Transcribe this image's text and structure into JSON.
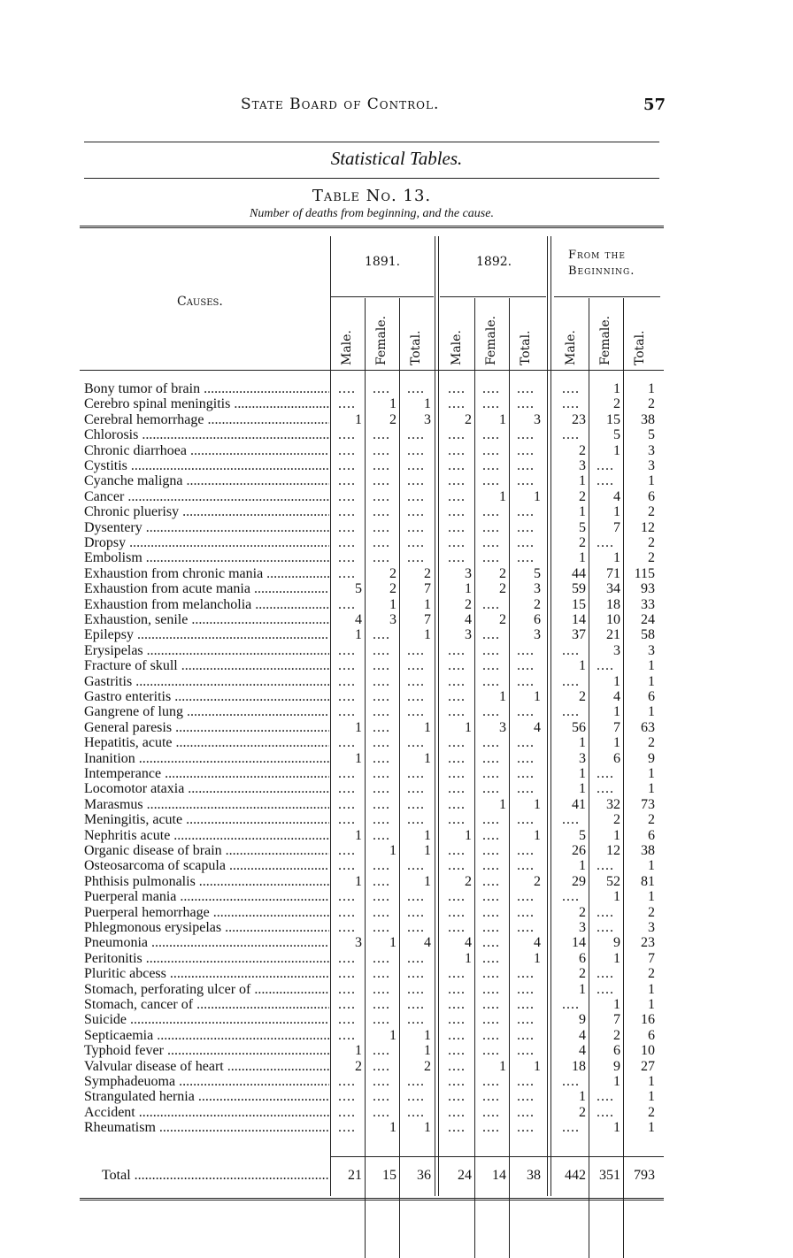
{
  "header": {
    "running_title": "State Board of Control.",
    "page_number": "57"
  },
  "section_title": "Statistical Tables.",
  "table": {
    "title": "Table No. 13.",
    "subtitle": "Number of deaths from beginning, and the cause.",
    "causes_header": "Causes.",
    "groups": [
      "1891.",
      "1892.",
      "From the Beginning."
    ],
    "subheaders": [
      "Male.",
      "Female.",
      "Total.",
      "Male.",
      "Female.",
      "Total.",
      "Male.",
      "Female.",
      "Total."
    ],
    "blank_marker": "....",
    "rows": [
      [
        "Bony tumor of brain",
        "",
        "",
        "",
        "",
        "",
        "",
        "",
        "1",
        "1"
      ],
      [
        "Cerebro spinal meningitis",
        "",
        "1",
        "1",
        "",
        "",
        "",
        "",
        "2",
        "2"
      ],
      [
        "Cerebral hemorrhage",
        "1",
        "2",
        "3",
        "2",
        "1",
        "3",
        "23",
        "15",
        "38"
      ],
      [
        "Chlorosis",
        "",
        "",
        "",
        "",
        "",
        "",
        "",
        "5",
        "5"
      ],
      [
        "Chronic diarrhoea",
        "",
        "",
        "",
        "",
        "",
        "",
        "2",
        "1",
        "3"
      ],
      [
        "Cystitis",
        "",
        "",
        "",
        "",
        "",
        "",
        "3",
        "",
        "3"
      ],
      [
        "Cyanche maligna",
        "",
        "",
        "",
        "",
        "",
        "",
        "1",
        "",
        "1"
      ],
      [
        "Cancer",
        "",
        "",
        "",
        "",
        "1",
        "1",
        "2",
        "4",
        "6"
      ],
      [
        "Chronic pluerisy",
        "",
        "",
        "",
        "",
        "",
        "",
        "1",
        "1",
        "2"
      ],
      [
        "Dysentery",
        "",
        "",
        "",
        "",
        "",
        "",
        "5",
        "7",
        "12"
      ],
      [
        "Dropsy",
        "",
        "",
        "",
        "",
        "",
        "",
        "2",
        "",
        "2"
      ],
      [
        "Embolism",
        "",
        "",
        "",
        "",
        "",
        "",
        "1",
        "1",
        "2"
      ],
      [
        "Exhaustion from chronic mania",
        "",
        "2",
        "2",
        "3",
        "2",
        "5",
        "44",
        "71",
        "115"
      ],
      [
        "Exhaustion from acute mania",
        "5",
        "2",
        "7",
        "1",
        "2",
        "3",
        "59",
        "34",
        "93"
      ],
      [
        "Exhaustion from melancholia",
        "",
        "1",
        "1",
        "2",
        "",
        "2",
        "15",
        "18",
        "33"
      ],
      [
        "Exhaustion, senile",
        "4",
        "3",
        "7",
        "4",
        "2",
        "6",
        "14",
        "10",
        "24"
      ],
      [
        "Epilepsy",
        "1",
        "",
        "1",
        "3",
        "",
        "3",
        "37",
        "21",
        "58"
      ],
      [
        "Erysipelas",
        "",
        "",
        "",
        "",
        "",
        "",
        "",
        "3",
        "3"
      ],
      [
        "Fracture of skull",
        "",
        "",
        "",
        "",
        "",
        "",
        "1",
        "",
        "1"
      ],
      [
        "Gastritis",
        "",
        "",
        "",
        "",
        "",
        "",
        "",
        "1",
        "1"
      ],
      [
        "Gastro enteritis",
        "",
        "",
        "",
        "",
        "1",
        "1",
        "2",
        "4",
        "6"
      ],
      [
        "Gangrene of lung",
        "",
        "",
        "",
        "",
        "",
        "",
        "",
        "1",
        "1"
      ],
      [
        "General paresis",
        "1",
        "",
        "1",
        "1",
        "3",
        "4",
        "56",
        "7",
        "63"
      ],
      [
        "Hepatitis, acute",
        "",
        "",
        "",
        "",
        "",
        "",
        "1",
        "1",
        "2"
      ],
      [
        "Inanition",
        "1",
        "",
        "1",
        "",
        "",
        "",
        "3",
        "6",
        "9"
      ],
      [
        "Intemperance",
        "",
        "",
        "",
        "",
        "",
        "",
        "1",
        "",
        "1"
      ],
      [
        "Locomotor ataxia",
        "",
        "",
        "",
        "",
        "",
        "",
        "1",
        "",
        "1"
      ],
      [
        "Marasmus",
        "",
        "",
        "",
        "",
        "1",
        "1",
        "41",
        "32",
        "73"
      ],
      [
        "Meningitis, acute",
        "",
        "",
        "",
        "",
        "",
        "",
        "",
        "2",
        "2"
      ],
      [
        "Nephritis acute",
        "1",
        "",
        "1",
        "1",
        "",
        "1",
        "5",
        "1",
        "6"
      ],
      [
        "Organic disease of brain",
        "",
        "1",
        "1",
        "",
        "",
        "",
        "26",
        "12",
        "38"
      ],
      [
        "Osteosarcoma of scapula",
        "",
        "",
        "",
        "",
        "",
        "",
        "1",
        "",
        "1"
      ],
      [
        "Phthisis pulmonalis",
        "1",
        "",
        "1",
        "2",
        "",
        "2",
        "29",
        "52",
        "81"
      ],
      [
        "Puerperal mania",
        "",
        "",
        "",
        "",
        "",
        "",
        "",
        "1",
        "1"
      ],
      [
        "Puerperal hemorrhage",
        "",
        "",
        "",
        "",
        "",
        "",
        "2",
        "",
        "2"
      ],
      [
        "Phlegmonous erysipelas",
        "",
        "",
        "",
        "",
        "",
        "",
        "3",
        "",
        "3"
      ],
      [
        "Pneumonia",
        "3",
        "1",
        "4",
        "4",
        "",
        "4",
        "14",
        "9",
        "23"
      ],
      [
        "Peritonitis",
        "",
        "",
        "",
        "1",
        "",
        "1",
        "6",
        "1",
        "7"
      ],
      [
        "Pluritic abcess",
        "",
        "",
        "",
        "",
        "",
        "",
        "2",
        "",
        "2"
      ],
      [
        "Stomach, perforating ulcer of",
        "",
        "",
        "",
        "",
        "",
        "",
        "1",
        "",
        "1"
      ],
      [
        "Stomach, cancer of",
        "",
        "",
        "",
        "",
        "",
        "",
        "",
        "1",
        "1"
      ],
      [
        "Suicide",
        "",
        "",
        "",
        "",
        "",
        "",
        "9",
        "7",
        "16"
      ],
      [
        "Septicaemia",
        "",
        "1",
        "1",
        "",
        "",
        "",
        "4",
        "2",
        "6"
      ],
      [
        "Typhoid fever",
        "1",
        "",
        "1",
        "",
        "",
        "",
        "4",
        "6",
        "10"
      ],
      [
        "Valvular disease of heart",
        "2",
        "",
        "2",
        "",
        "1",
        "1",
        "18",
        "9",
        "27"
      ],
      [
        "Symphadeuoma",
        "",
        "",
        "",
        "",
        "",
        "",
        "",
        "1",
        "1"
      ],
      [
        "Strangulated hernia",
        "",
        "",
        "",
        "",
        "",
        "",
        "1",
        "",
        "1"
      ],
      [
        "Accident",
        "",
        "",
        "",
        "",
        "",
        "",
        "2",
        "",
        "2"
      ],
      [
        "Rheumatism",
        "",
        "1",
        "1",
        "",
        "",
        "",
        "",
        "1",
        "1"
      ]
    ],
    "total": [
      "Total",
      "21",
      "15",
      "36",
      "24",
      "14",
      "38",
      "442",
      "351",
      "793"
    ]
  }
}
